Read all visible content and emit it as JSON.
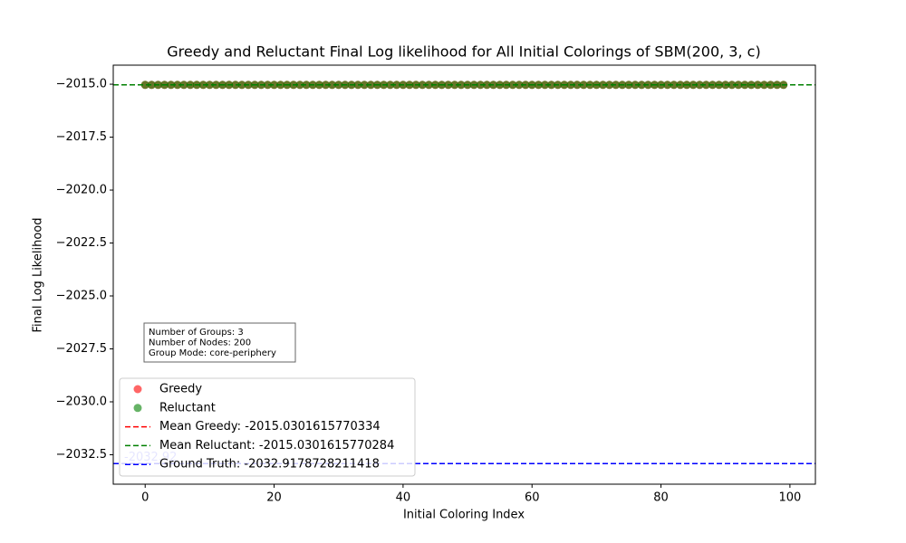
{
  "chart_data": {
    "type": "scatter",
    "title": "Greedy and Reluctant Final Log likelihood for All Initial Colorings of SBM(200, 3, c)",
    "xlabel": "Initial Coloring Index",
    "ylabel": "Final Log Likelihood",
    "x": [
      0,
      1,
      2,
      3,
      4,
      5,
      6,
      7,
      8,
      9,
      10,
      11,
      12,
      13,
      14,
      15,
      16,
      17,
      18,
      19,
      20,
      21,
      22,
      23,
      24,
      25,
      26,
      27,
      28,
      29,
      30,
      31,
      32,
      33,
      34,
      35,
      36,
      37,
      38,
      39,
      40,
      41,
      42,
      43,
      44,
      45,
      46,
      47,
      48,
      49,
      50,
      51,
      52,
      53,
      54,
      55,
      56,
      57,
      58,
      59,
      60,
      61,
      62,
      63,
      64,
      65,
      66,
      67,
      68,
      69,
      70,
      71,
      72,
      73,
      74,
      75,
      76,
      77,
      78,
      79,
      80,
      81,
      82,
      83,
      84,
      85,
      86,
      87,
      88,
      89,
      90,
      91,
      92,
      93,
      94,
      95,
      96,
      97,
      98,
      99
    ],
    "series": [
      {
        "name": "Greedy",
        "color": "red",
        "values": [
          -2015.03,
          -2015.03,
          -2015.03,
          -2015.03,
          -2015.03,
          -2015.03,
          -2015.03,
          -2015.03,
          -2015.03,
          -2015.03,
          -2015.03,
          -2015.03,
          -2015.03,
          -2015.03,
          -2015.03,
          -2015.03,
          -2015.03,
          -2015.03,
          -2015.03,
          -2015.03,
          -2015.03,
          -2015.03,
          -2015.03,
          -2015.03,
          -2015.03,
          -2015.03,
          -2015.03,
          -2015.03,
          -2015.03,
          -2015.03,
          -2015.03,
          -2015.03,
          -2015.03,
          -2015.03,
          -2015.03,
          -2015.03,
          -2015.03,
          -2015.03,
          -2015.03,
          -2015.03,
          -2015.03,
          -2015.03,
          -2015.03,
          -2015.03,
          -2015.03,
          -2015.03,
          -2015.03,
          -2015.03,
          -2015.03,
          -2015.03,
          -2015.03,
          -2015.03,
          -2015.03,
          -2015.03,
          -2015.03,
          -2015.03,
          -2015.03,
          -2015.03,
          -2015.03,
          -2015.03,
          -2015.03,
          -2015.03,
          -2015.03,
          -2015.03,
          -2015.03,
          -2015.03,
          -2015.03,
          -2015.03,
          -2015.03,
          -2015.03,
          -2015.03,
          -2015.03,
          -2015.03,
          -2015.03,
          -2015.03,
          -2015.03,
          -2015.03,
          -2015.03,
          -2015.03,
          -2015.03,
          -2015.03,
          -2015.03,
          -2015.03,
          -2015.03,
          -2015.03,
          -2015.03,
          -2015.03,
          -2015.03,
          -2015.03,
          -2015.03,
          -2015.03,
          -2015.03,
          -2015.03,
          -2015.03,
          -2015.03,
          -2015.03,
          -2015.03,
          -2015.03,
          -2015.03,
          -2015.03
        ]
      },
      {
        "name": "Reluctant",
        "color": "green",
        "values": [
          -2015.03,
          -2015.03,
          -2015.03,
          -2015.03,
          -2015.03,
          -2015.03,
          -2015.03,
          -2015.03,
          -2015.03,
          -2015.03,
          -2015.03,
          -2015.03,
          -2015.03,
          -2015.03,
          -2015.03,
          -2015.03,
          -2015.03,
          -2015.03,
          -2015.03,
          -2015.03,
          -2015.03,
          -2015.03,
          -2015.03,
          -2015.03,
          -2015.03,
          -2015.03,
          -2015.03,
          -2015.03,
          -2015.03,
          -2015.03,
          -2015.03,
          -2015.03,
          -2015.03,
          -2015.03,
          -2015.03,
          -2015.03,
          -2015.03,
          -2015.03,
          -2015.03,
          -2015.03,
          -2015.03,
          -2015.03,
          -2015.03,
          -2015.03,
          -2015.03,
          -2015.03,
          -2015.03,
          -2015.03,
          -2015.03,
          -2015.03,
          -2015.03,
          -2015.03,
          -2015.03,
          -2015.03,
          -2015.03,
          -2015.03,
          -2015.03,
          -2015.03,
          -2015.03,
          -2015.03,
          -2015.03,
          -2015.03,
          -2015.03,
          -2015.03,
          -2015.03,
          -2015.03,
          -2015.03,
          -2015.03,
          -2015.03,
          -2015.03,
          -2015.03,
          -2015.03,
          -2015.03,
          -2015.03,
          -2015.03,
          -2015.03,
          -2015.03,
          -2015.03,
          -2015.03,
          -2015.03,
          -2015.03,
          -2015.03,
          -2015.03,
          -2015.03,
          -2015.03,
          -2015.03,
          -2015.03,
          -2015.03,
          -2015.03,
          -2015.03,
          -2015.03,
          -2015.03,
          -2015.03,
          -2015.03,
          -2015.03,
          -2015.03,
          -2015.03,
          -2015.03,
          -2015.03,
          -2015.03
        ]
      }
    ],
    "hlines": [
      {
        "name": "Mean Greedy: -2015.0301615770334",
        "value": -2015.0301615770334,
        "color": "red"
      },
      {
        "name": "Mean Reluctant: -2015.0301615770284",
        "value": -2015.0301615770284,
        "color": "green"
      },
      {
        "name": "Ground Truth: -2032.9178728211418",
        "value": -2032.9178728211418,
        "color": "blue"
      }
    ],
    "ground_truth_label": "-2032.92",
    "info_box": [
      "Number of Groups: 3",
      "Number of Nodes: 200",
      "Group Mode: core-periphery"
    ],
    "xlim": [
      -4.95,
      103.95
    ],
    "ylim": [
      -2033.89,
      -2014.1
    ],
    "xticks": [
      0,
      20,
      40,
      60,
      80,
      100
    ],
    "yticks": [
      {
        "value": -2015,
        "label": "−2015.0"
      },
      {
        "value": -2017.5,
        "label": "−2017.5"
      },
      {
        "value": -2020,
        "label": "−2020.0"
      },
      {
        "value": -2022.5,
        "label": "−2022.5"
      },
      {
        "value": -2025,
        "label": "−2025.0"
      },
      {
        "value": -2027.5,
        "label": "−2027.5"
      },
      {
        "value": -2030,
        "label": "−2030.0"
      },
      {
        "value": -2032.5,
        "label": "−2032.5"
      }
    ],
    "legend": "lower left"
  }
}
